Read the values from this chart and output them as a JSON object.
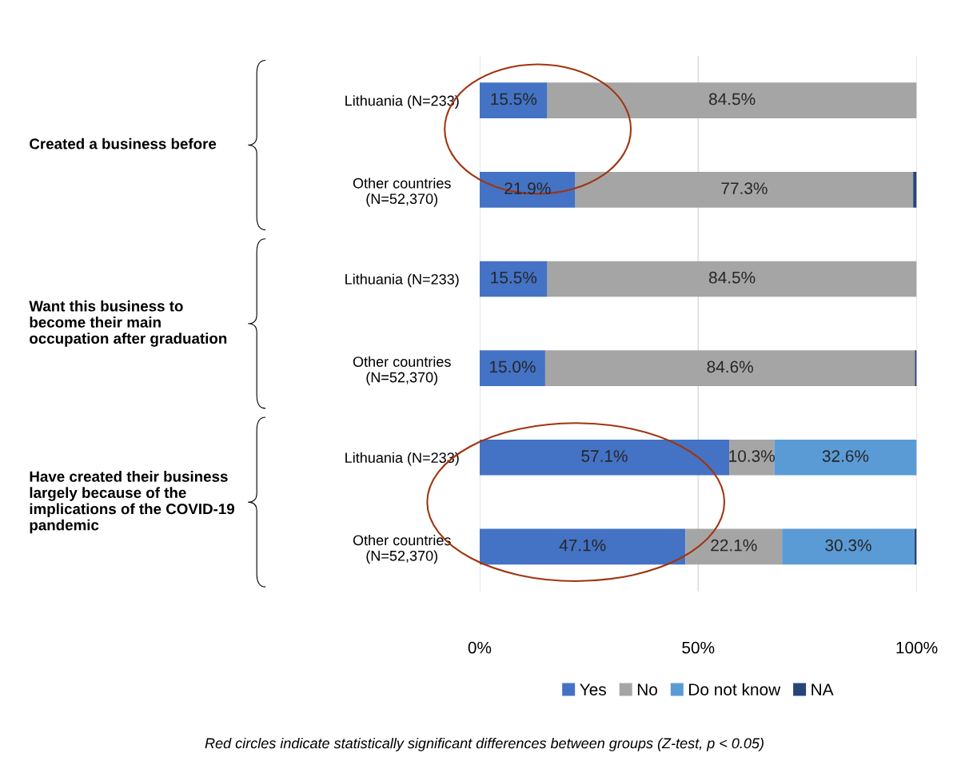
{
  "chart_data": {
    "type": "bar",
    "orientation": "horizontal",
    "stacked": true,
    "categories": [
      "Lithuania (N=233)",
      "Other countries\n(N=52,370)",
      "Lithuania (N=233)",
      "Other countries\n(N=52,370)",
      "Lithuania (N=233)",
      "Other countries\n(N=52,370)"
    ],
    "series": [
      {
        "name": "Yes",
        "color": "#4472c4",
        "values": [
          15.5,
          21.9,
          15.5,
          15.0,
          57.1,
          47.1
        ],
        "value_labels": [
          "15.5%",
          "21.9%",
          "15.5%",
          "15.0%",
          "57.1%",
          "47.1%"
        ]
      },
      {
        "name": "No",
        "color": "#a5a5a5",
        "values": [
          84.5,
          77.3,
          84.5,
          84.6,
          10.3,
          22.1
        ],
        "value_labels": [
          "84.5%",
          "77.3%",
          "84.5%",
          "84.6%",
          "10.3%",
          "22.1%"
        ]
      },
      {
        "name": "Do not know",
        "color": "#5b9bd5",
        "values": [
          0,
          0,
          0,
          0,
          32.6,
          30.3
        ],
        "value_labels": [
          null,
          null,
          null,
          null,
          "32.6%",
          "30.3%"
        ]
      },
      {
        "name": "NA",
        "color": "#264478",
        "values": [
          0,
          0.8,
          0,
          0.4,
          0,
          0.5
        ]
      }
    ],
    "xlim": [
      0,
      100
    ],
    "xticks": [
      {
        "value": 0,
        "label": "0%"
      },
      {
        "value": 50,
        "label": "50%"
      },
      {
        "value": 100,
        "label": "100%"
      }
    ],
    "grid": "x",
    "legend": "bottom",
    "annotations": [
      "Created a business before",
      "Want this business to become their main occupation after graduation",
      "Have created their business largely because of the implications of the COVID-19 pandemic",
      "Red circles indicate statistically significant differences between groups (Z-test, p < 0.05)"
    ]
  }
}
